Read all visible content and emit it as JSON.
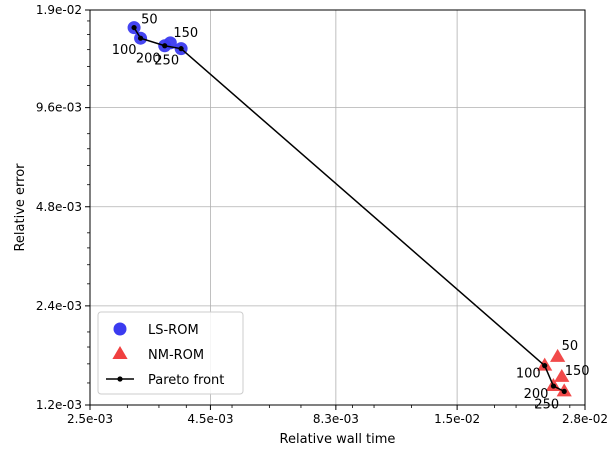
{
  "chart_data": {
    "type": "scatter",
    "xlabel": "Relative wall time",
    "ylabel": "Relative error",
    "xscale": "log",
    "yscale": "log",
    "xlim": [
      0.0025,
      0.028
    ],
    "ylim": [
      0.0012,
      0.019
    ],
    "xticks": [
      {
        "value": 0.0025,
        "label": "2.5e-03"
      },
      {
        "value": 0.0045,
        "label": "4.5e-03"
      },
      {
        "value": 0.0083,
        "label": "8.3e-03"
      },
      {
        "value": 0.015,
        "label": "1.5e-02"
      },
      {
        "value": 0.028,
        "label": "2.8e-02"
      }
    ],
    "yticks": [
      {
        "value": 0.0012,
        "label": "1.2e-03"
      },
      {
        "value": 0.0024,
        "label": "2.4e-03"
      },
      {
        "value": 0.0048,
        "label": "4.8e-03"
      },
      {
        "value": 0.0096,
        "label": "9.6e-03"
      },
      {
        "value": 0.019,
        "label": "1.9e-02"
      }
    ],
    "grid": true,
    "legend_position": "lower-left",
    "series": [
      {
        "name": "LS-ROM",
        "marker": "circle",
        "color": "#3b3bf0",
        "points": [
          {
            "x": 0.0031,
            "y": 0.0168,
            "label": "50"
          },
          {
            "x": 0.0032,
            "y": 0.0156,
            "label": "100"
          },
          {
            "x": 0.0036,
            "y": 0.0148,
            "label": "200"
          },
          {
            "x": 0.0037,
            "y": 0.0151,
            "label": "150"
          },
          {
            "x": 0.0039,
            "y": 0.0145,
            "label": "250"
          }
        ]
      },
      {
        "name": "NM-ROM",
        "marker": "triangle",
        "color": "#f04040",
        "points": [
          {
            "x": 0.0245,
            "y": 0.00168,
            "label": "50"
          },
          {
            "x": 0.023,
            "y": 0.00158,
            "label": "100"
          },
          {
            "x": 0.025,
            "y": 0.00146,
            "label": "150"
          },
          {
            "x": 0.024,
            "y": 0.00137,
            "label": "200"
          },
          {
            "x": 0.0253,
            "y": 0.00132,
            "label": "250"
          }
        ]
      },
      {
        "name": "Pareto front",
        "marker": "line-dot",
        "color": "#000000",
        "points": [
          {
            "x": 0.0031,
            "y": 0.0168
          },
          {
            "x": 0.0032,
            "y": 0.0156
          },
          {
            "x": 0.0036,
            "y": 0.0148
          },
          {
            "x": 0.0039,
            "y": 0.0145
          },
          {
            "x": 0.023,
            "y": 0.00158
          },
          {
            "x": 0.024,
            "y": 0.00137
          },
          {
            "x": 0.0253,
            "y": 0.00132
          }
        ]
      }
    ]
  }
}
